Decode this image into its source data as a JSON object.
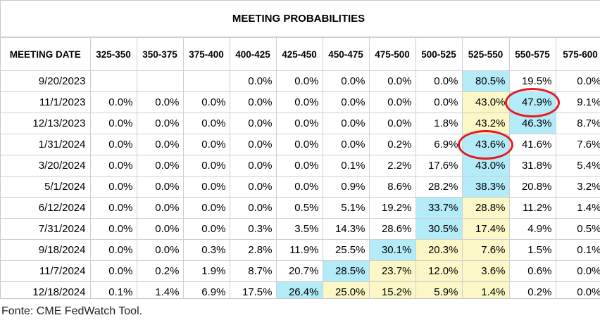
{
  "chart_data": {
    "type": "table",
    "title": "MEETING PROBABILITIES",
    "columns": [
      "MEETING DATE",
      "325-350",
      "350-375",
      "375-400",
      "400-425",
      "425-450",
      "450-475",
      "475-500",
      "500-525",
      "525-550",
      "550-575",
      "575-600"
    ],
    "rows": [
      [
        "9/20/2023",
        "",
        "",
        "",
        "0.0%",
        "0.0%",
        "0.0%",
        "0.0%",
        "0.0%",
        "80.5%",
        "19.5%",
        "0.0%"
      ],
      [
        "11/1/2023",
        "0.0%",
        "0.0%",
        "0.0%",
        "0.0%",
        "0.0%",
        "0.0%",
        "0.0%",
        "0.0%",
        "43.0%",
        "47.9%",
        "9.1%"
      ],
      [
        "12/13/2023",
        "0.0%",
        "0.0%",
        "0.0%",
        "0.0%",
        "0.0%",
        "0.0%",
        "0.0%",
        "1.8%",
        "43.2%",
        "46.3%",
        "8.7%"
      ],
      [
        "1/31/2024",
        "0.0%",
        "0.0%",
        "0.0%",
        "0.0%",
        "0.0%",
        "0.0%",
        "0.2%",
        "6.9%",
        "43.6%",
        "41.6%",
        "7.6%"
      ],
      [
        "3/20/2024",
        "0.0%",
        "0.0%",
        "0.0%",
        "0.0%",
        "0.0%",
        "0.1%",
        "2.2%",
        "17.6%",
        "43.0%",
        "31.8%",
        "5.4%"
      ],
      [
        "5/1/2024",
        "0.0%",
        "0.0%",
        "0.0%",
        "0.0%",
        "0.0%",
        "0.9%",
        "8.6%",
        "28.2%",
        "38.3%",
        "20.8%",
        "3.2%"
      ],
      [
        "6/12/2024",
        "0.0%",
        "0.0%",
        "0.0%",
        "0.0%",
        "0.5%",
        "5.1%",
        "19.2%",
        "33.7%",
        "28.8%",
        "11.2%",
        "1.4%"
      ],
      [
        "7/31/2024",
        "0.0%",
        "0.0%",
        "0.0%",
        "0.3%",
        "3.5%",
        "14.3%",
        "28.6%",
        "30.5%",
        "17.4%",
        "4.9%",
        "0.5%"
      ],
      [
        "9/18/2024",
        "0.0%",
        "0.0%",
        "0.3%",
        "2.8%",
        "11.9%",
        "25.5%",
        "30.1%",
        "20.3%",
        "7.6%",
        "1.5%",
        "0.1%"
      ],
      [
        "11/7/2024",
        "0.0%",
        "0.2%",
        "1.9%",
        "8.7%",
        "20.7%",
        "28.5%",
        "23.7%",
        "12.0%",
        "3.6%",
        "0.6%",
        "0.0%"
      ],
      [
        "12/18/2024",
        "0.1%",
        "1.4%",
        "6.9%",
        "17.5%",
        "26.4%",
        "25.0%",
        "15.2%",
        "5.9%",
        "1.4%",
        "0.2%",
        "0.0%"
      ]
    ],
    "highlights": [
      [
        0,
        9,
        "blue"
      ],
      [
        1,
        9,
        "yellow"
      ],
      [
        1,
        10,
        "blue"
      ],
      [
        2,
        9,
        "yellow"
      ],
      [
        2,
        10,
        "blue"
      ],
      [
        3,
        9,
        "blue"
      ],
      [
        4,
        9,
        "blue"
      ],
      [
        5,
        9,
        "blue"
      ],
      [
        6,
        8,
        "blue"
      ],
      [
        6,
        9,
        "yellow"
      ],
      [
        7,
        8,
        "blue"
      ],
      [
        7,
        9,
        "yellow"
      ],
      [
        8,
        7,
        "blue"
      ],
      [
        8,
        8,
        "yellow"
      ],
      [
        8,
        9,
        "yellow"
      ],
      [
        9,
        6,
        "blue"
      ],
      [
        9,
        7,
        "yellow"
      ],
      [
        9,
        8,
        "yellow"
      ],
      [
        9,
        9,
        "yellow"
      ],
      [
        10,
        5,
        "blue"
      ],
      [
        10,
        6,
        "yellow"
      ],
      [
        10,
        7,
        "yellow"
      ],
      [
        10,
        8,
        "yellow"
      ],
      [
        10,
        9,
        "yellow"
      ]
    ],
    "circled_cells": [
      [
        1,
        10
      ],
      [
        3,
        9
      ]
    ],
    "colors": {
      "highlight_blue": "#b3ebf8",
      "highlight_yellow": "#fbf7c6",
      "circle": "#e31b23"
    }
  },
  "source": "Fonte: CME FedWatch Tool."
}
